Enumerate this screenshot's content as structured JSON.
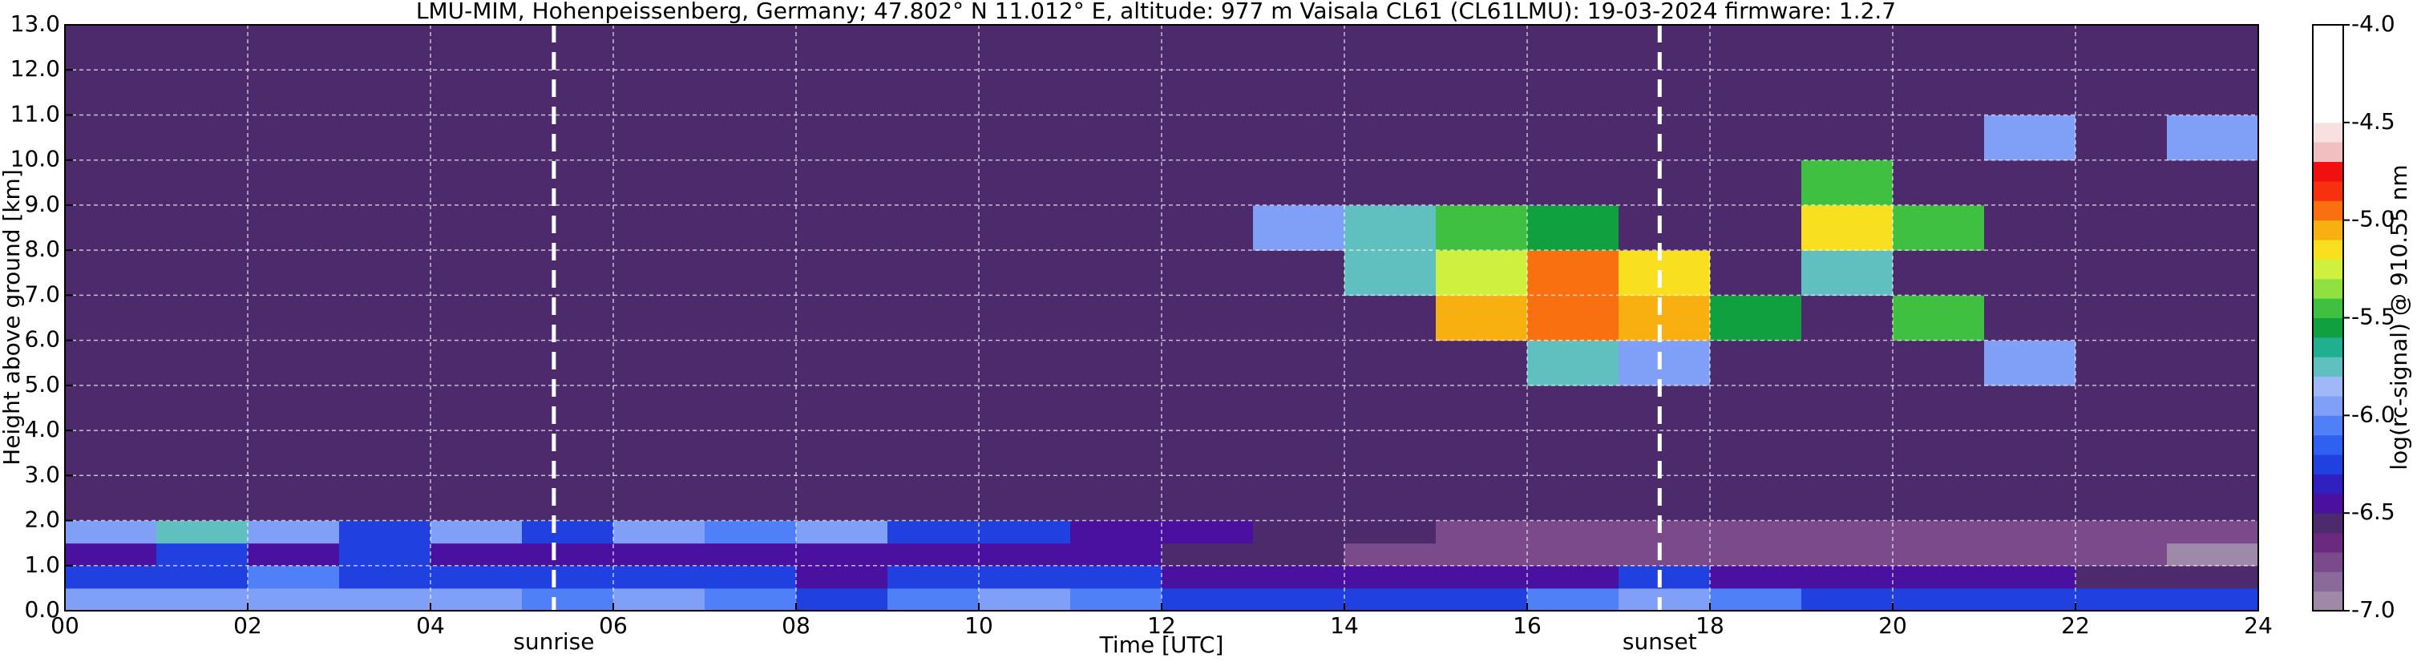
{
  "chart_data": {
    "type": "heatmap",
    "title": "LMU-MIM, Hohenpeissenberg, Germany; 47.802° N 11.012° E, altitude: 977 m    Vaisala CL61 (CL61LMU): 19-03-2024    firmware: 1.2.7",
    "x_label": "Time [UTC]",
    "y_label": "Height above ground [km]",
    "colorbar_label": "log(rc-signal) @ 910.55 nm",
    "xlim": [
      0,
      24
    ],
    "ylim": [
      0,
      13
    ],
    "xticks": [
      {
        "value": 0,
        "label": "00"
      },
      {
        "value": 2,
        "label": "02"
      },
      {
        "value": 4,
        "label": "04"
      },
      {
        "value": 6,
        "label": "06"
      },
      {
        "value": 8,
        "label": "08"
      },
      {
        "value": 10,
        "label": "10"
      },
      {
        "value": 12,
        "label": "12"
      },
      {
        "value": 14,
        "label": "14"
      },
      {
        "value": 16,
        "label": "16"
      },
      {
        "value": 18,
        "label": "18"
      },
      {
        "value": 20,
        "label": "20"
      },
      {
        "value": 22,
        "label": "22"
      },
      {
        "value": 24,
        "label": "24"
      }
    ],
    "yticks": [
      {
        "value": 0,
        "label": "0.0"
      },
      {
        "value": 1,
        "label": "1.0"
      },
      {
        "value": 2,
        "label": "2.0"
      },
      {
        "value": 3,
        "label": "3.0"
      },
      {
        "value": 4,
        "label": "4.0"
      },
      {
        "value": 5,
        "label": "5.0"
      },
      {
        "value": 6,
        "label": "6.0"
      },
      {
        "value": 7,
        "label": "7.0"
      },
      {
        "value": 8,
        "label": "8.0"
      },
      {
        "value": 9,
        "label": "9.0"
      },
      {
        "value": 10,
        "label": "10.0"
      },
      {
        "value": 11,
        "label": "11.0"
      },
      {
        "value": 12,
        "label": "12.0"
      },
      {
        "value": 13,
        "label": "13.0"
      }
    ],
    "clim": [
      -7,
      -4
    ],
    "cticks": [
      {
        "value": -7,
        "label": "-7.0"
      },
      {
        "value": -6.5,
        "label": "-6.5"
      },
      {
        "value": -6,
        "label": "-6.0"
      },
      {
        "value": -5.5,
        "label": "-5.5"
      },
      {
        "value": -5,
        "label": "-5.0"
      },
      {
        "value": -4.5,
        "label": "-4.5"
      },
      {
        "value": -4,
        "label": "-4.0"
      }
    ],
    "colormap": [
      "#9e8aa8",
      "#8a6a98",
      "#7a4a8a",
      "#6a2a80",
      "#4c2a6c",
      "#4a10a0",
      "#3020c0",
      "#2040e0",
      "#3060f0",
      "#5080f8",
      "#80a0f8",
      "#a0b8f8",
      "#60c0c0",
      "#20b090",
      "#10a040",
      "#40c040",
      "#90e040",
      "#d0f040",
      "#f8e020",
      "#f8b010",
      "#f87010",
      "#f83010",
      "#f01010",
      "#f0c0c0",
      "#f8e0e0",
      "#ffffff",
      "#ffffff",
      "#ffffff",
      "#ffffff",
      "#ffffff"
    ],
    "grid": true,
    "x_edges": [
      0,
      1,
      2,
      3,
      4,
      5,
      6,
      7,
      8,
      9,
      10,
      11,
      12,
      13,
      14,
      15,
      16,
      17,
      18,
      19,
      20,
      21,
      22,
      23,
      24
    ],
    "y_edges": [
      0,
      0.5,
      1,
      1.5,
      2,
      3,
      4,
      5,
      6,
      7,
      8,
      9,
      10,
      11,
      13
    ],
    "z": [
      [
        -6.0,
        -6.0,
        -5.9,
        -6.0,
        -6.0,
        -6.1,
        -6.0,
        -6.1,
        -6.2,
        -6.1,
        -6.0,
        -6.1,
        -6.2,
        -6.2,
        -6.3,
        -6.2,
        -6.1,
        -6.0,
        -6.1,
        -6.2,
        -6.2,
        -6.3,
        -6.3,
        -6.3
      ],
      [
        -6.3,
        -6.2,
        -6.1,
        -6.2,
        -6.3,
        -6.3,
        -6.2,
        -6.3,
        -6.4,
        -6.3,
        -6.3,
        -6.3,
        -6.4,
        -6.5,
        -6.5,
        -6.4,
        -6.4,
        -6.3,
        -6.4,
        -6.5,
        -6.5,
        -6.5,
        -6.6,
        -6.6
      ],
      [
        -6.4,
        -6.3,
        -6.4,
        -6.3,
        -6.4,
        -6.5,
        -6.4,
        -6.4,
        -6.5,
        -6.4,
        -6.4,
        -6.4,
        -6.6,
        -6.6,
        -6.7,
        -6.7,
        -6.8,
        -6.8,
        -6.8,
        -6.8,
        -6.8,
        -6.8,
        -6.8,
        -6.9
      ],
      [
        -5.9,
        -5.8,
        -6.0,
        -6.2,
        -5.9,
        -6.3,
        -6.0,
        -6.1,
        -6.0,
        -6.3,
        -6.2,
        -6.4,
        -6.4,
        -6.6,
        -6.6,
        -6.7,
        -6.7,
        -6.7,
        -6.8,
        -6.8,
        -6.8,
        -6.8,
        -6.8,
        -6.8
      ],
      [
        -6.6,
        -6.6,
        -6.6,
        -6.6,
        -6.6,
        -6.6,
        -6.6,
        -6.6,
        -6.6,
        -6.6,
        -6.6,
        -6.6,
        -6.6,
        -6.6,
        -6.6,
        -6.6,
        -6.6,
        -6.6,
        -6.6,
        -6.6,
        -6.6,
        -6.6,
        -6.6,
        -6.6
      ],
      [
        -6.6,
        -6.6,
        -6.6,
        -6.6,
        -6.6,
        -6.6,
        -6.6,
        -6.6,
        -6.6,
        -6.6,
        -6.6,
        -6.6,
        -6.6,
        -6.6,
        -6.6,
        -6.6,
        -6.6,
        -6.6,
        -6.6,
        -6.6,
        -6.6,
        -6.6,
        -6.6,
        -6.6
      ],
      [
        -6.6,
        -6.6,
        -6.6,
        -6.6,
        -6.6,
        -6.6,
        -6.6,
        -6.6,
        -6.6,
        -6.6,
        -6.6,
        -6.6,
        -6.6,
        -6.6,
        -6.6,
        -6.6,
        -6.6,
        -6.6,
        -6.6,
        -6.6,
        -6.6,
        -6.6,
        -6.6,
        -6.6
      ],
      [
        -6.6,
        -6.6,
        -6.6,
        -6.6,
        -6.6,
        -6.6,
        -6.6,
        -6.6,
        -6.6,
        -6.6,
        -6.6,
        -6.6,
        -6.6,
        -6.6,
        -6.6,
        -6.6,
        -5.8,
        -5.9,
        -6.6,
        -6.6,
        -6.6,
        -5.9,
        -6.6,
        -6.6
      ],
      [
        -6.6,
        -6.6,
        -6.6,
        -6.6,
        -6.6,
        -6.6,
        -6.6,
        -6.6,
        -6.6,
        -6.6,
        -6.6,
        -6.6,
        -6.6,
        -6.6,
        -6.6,
        -5.1,
        -5.0,
        -5.1,
        -5.6,
        -6.6,
        -5.5,
        -6.6,
        -6.6,
        -6.6
      ],
      [
        -6.6,
        -6.6,
        -6.6,
        -6.6,
        -6.6,
        -6.6,
        -6.6,
        -6.6,
        -6.6,
        -6.6,
        -6.6,
        -6.6,
        -6.6,
        -6.6,
        -5.8,
        -5.3,
        -5.0,
        -5.2,
        -6.6,
        -5.7,
        -6.6,
        -6.6,
        -6.6,
        -6.6
      ],
      [
        -6.6,
        -6.6,
        -6.6,
        -6.6,
        -6.6,
        -6.6,
        -6.6,
        -6.6,
        -6.6,
        -6.6,
        -6.6,
        -6.6,
        -6.6,
        -5.9,
        -5.7,
        -5.5,
        -5.6,
        -6.6,
        -6.6,
        -5.2,
        -5.4,
        -6.6,
        -6.6,
        -6.6
      ],
      [
        -6.6,
        -6.6,
        -6.6,
        -6.6,
        -6.6,
        -6.6,
        -6.6,
        -6.6,
        -6.6,
        -6.6,
        -6.6,
        -6.6,
        -6.6,
        -6.6,
        -6.6,
        -6.6,
        -6.6,
        -6.6,
        -6.6,
        -5.5,
        -6.6,
        -6.6,
        -6.6,
        -6.6
      ],
      [
        -6.6,
        -6.6,
        -6.6,
        -6.6,
        -6.6,
        -6.6,
        -6.6,
        -6.6,
        -6.6,
        -6.6,
        -6.6,
        -6.6,
        -6.6,
        -6.6,
        -6.6,
        -6.6,
        -6.6,
        -6.6,
        -6.6,
        -6.6,
        -6.6,
        -6.0,
        -6.6,
        -6.0
      ],
      [
        -6.6,
        -6.6,
        -6.6,
        -6.6,
        -6.6,
        -6.6,
        -6.6,
        -6.6,
        -6.6,
        -6.6,
        -6.6,
        -6.6,
        -6.6,
        -6.6,
        -6.6,
        -6.6,
        -6.6,
        -6.6,
        -6.6,
        -6.6,
        -6.6,
        -6.6,
        -6.6,
        -6.6
      ]
    ],
    "annotations": [
      {
        "x": 5.35,
        "label": "sunrise"
      },
      {
        "x": 17.45,
        "label": "sunset"
      }
    ]
  }
}
